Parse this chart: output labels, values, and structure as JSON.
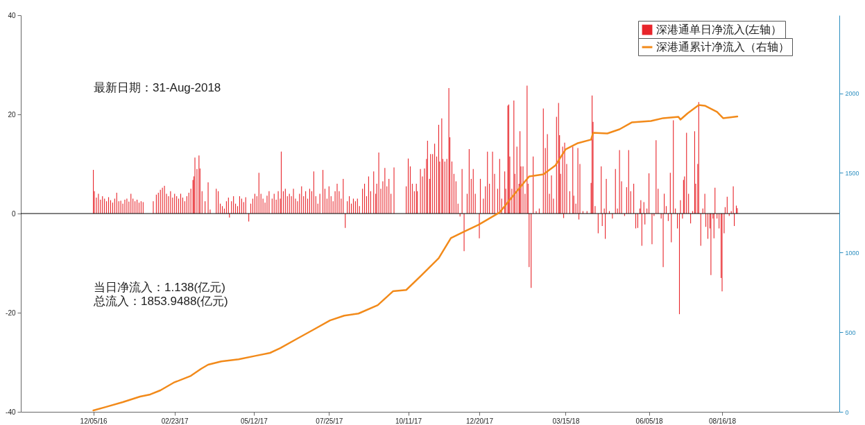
{
  "chart_data": {
    "type": "bar",
    "xlim": [
      "2016-09-28",
      "2018-12-06"
    ],
    "xticks": [
      {
        "value": "2016-12-05",
        "label": "12/05/16"
      },
      {
        "value": "2017-02-23",
        "label": "02/23/17"
      },
      {
        "value": "2017-05-12",
        "label": "05/12/17"
      },
      {
        "value": "2017-07-25",
        "label": "07/25/17"
      },
      {
        "value": "2017-10-11",
        "label": "10/11/17"
      },
      {
        "value": "2017-12-20",
        "label": "12/20/17"
      },
      {
        "value": "2018-03-15",
        "label": "03/15/18"
      },
      {
        "value": "2018-06-05",
        "label": "06/05/18"
      },
      {
        "value": "2018-08-16",
        "label": "08/16/18"
      }
    ],
    "ylim": [
      -40,
      40
    ],
    "yticks": [
      -40,
      -20,
      0,
      20,
      40
    ],
    "y2lim": [
      0,
      2490
    ],
    "y2ticks": [
      0,
      500,
      1000,
      1500,
      2000
    ],
    "legend": "top right",
    "ref_lines": [
      {
        "axis": "y",
        "value": 0,
        "color": "#000000"
      }
    ],
    "annotations": [
      "最新日期：31-Aug-2018",
      "当日净流入：1.138(亿元)",
      "总流入：1853.9488(亿元)"
    ],
    "series": [
      {
        "name": "深港通单日净流入(左轴）",
        "color": "#e8242a",
        "x": [
          "2016-12-05",
          "2016-12-06",
          "2016-12-08",
          "2016-12-10",
          "2016-12-12",
          "2016-12-14",
          "2016-12-16",
          "2016-12-18",
          "2016-12-20",
          "2016-12-22",
          "2016-12-24",
          "2016-12-26",
          "2016-12-28",
          "2016-12-30",
          "2017-01-01",
          "2017-01-03",
          "2017-01-05",
          "2017-01-07",
          "2017-01-09",
          "2017-01-11",
          "2017-01-13",
          "2017-01-15",
          "2017-01-17",
          "2017-01-19",
          "2017-01-21",
          "2017-01-23",
          "2017-02-02",
          "2017-02-05",
          "2017-02-07",
          "2017-02-09",
          "2017-02-11",
          "2017-02-13",
          "2017-02-15",
          "2017-02-17",
          "2017-02-19",
          "2017-02-21",
          "2017-02-23",
          "2017-02-25",
          "2017-02-27",
          "2017-03-01",
          "2017-03-03",
          "2017-03-05",
          "2017-03-07",
          "2017-03-09",
          "2017-03-11",
          "2017-03-13",
          "2017-03-14",
          "2017-03-15",
          "2017-03-17",
          "2017-03-19",
          "2017-03-20",
          "2017-03-22",
          "2017-03-25",
          "2017-03-28",
          "2017-03-30",
          "2017-04-05",
          "2017-04-07",
          "2017-04-09",
          "2017-04-11",
          "2017-04-13",
          "2017-04-15",
          "2017-04-17",
          "2017-04-18",
          "2017-04-20",
          "2017-04-22",
          "2017-04-24",
          "2017-04-26",
          "2017-04-28",
          "2017-04-30",
          "2017-05-02",
          "2017-05-04",
          "2017-05-07",
          "2017-05-09",
          "2017-05-11",
          "2017-05-13",
          "2017-05-15",
          "2017-05-17",
          "2017-05-19",
          "2017-05-21",
          "2017-05-23",
          "2017-05-25",
          "2017-05-27",
          "2017-05-30",
          "2017-06-01",
          "2017-06-03",
          "2017-06-05",
          "2017-06-07",
          "2017-06-08",
          "2017-06-10",
          "2017-06-12",
          "2017-06-14",
          "2017-06-16",
          "2017-06-18",
          "2017-06-20",
          "2017-06-22",
          "2017-06-24",
          "2017-06-26",
          "2017-06-28",
          "2017-06-30",
          "2017-07-02",
          "2017-07-04",
          "2017-07-06",
          "2017-07-08",
          "2017-07-10",
          "2017-07-12",
          "2017-07-14",
          "2017-07-16",
          "2017-07-19",
          "2017-07-21",
          "2017-07-23",
          "2017-07-25",
          "2017-07-27",
          "2017-07-29",
          "2017-07-31",
          "2017-08-02",
          "2017-08-04",
          "2017-08-06",
          "2017-08-08",
          "2017-08-10",
          "2017-08-12",
          "2017-08-14",
          "2017-08-16",
          "2017-08-18",
          "2017-08-20",
          "2017-08-22",
          "2017-08-24",
          "2017-08-27",
          "2017-08-29",
          "2017-08-31",
          "2017-09-02",
          "2017-09-04",
          "2017-09-07",
          "2017-09-09",
          "2017-09-10",
          "2017-09-12",
          "2017-09-14",
          "2017-09-16",
          "2017-09-18",
          "2017-09-20",
          "2017-09-22",
          "2017-09-24",
          "2017-09-27",
          "2017-10-09",
          "2017-10-11",
          "2017-10-13",
          "2017-10-15",
          "2017-10-17",
          "2017-10-19",
          "2017-10-20",
          "2017-10-23",
          "2017-10-25",
          "2017-10-27",
          "2017-10-29",
          "2017-10-30",
          "2017-11-01",
          "2017-11-02",
          "2017-11-04",
          "2017-11-06",
          "2017-11-08",
          "2017-11-10",
          "2017-11-11",
          "2017-11-13",
          "2017-11-14",
          "2017-11-16",
          "2017-11-18",
          "2017-11-20",
          "2017-11-21",
          "2017-11-23",
          "2017-11-25",
          "2017-11-27",
          "2017-11-29",
          "2017-12-01",
          "2017-12-03",
          "2017-12-05",
          "2017-12-08",
          "2017-12-10",
          "2017-12-12",
          "2017-12-14",
          "2017-12-16",
          "2017-12-20",
          "2017-12-21",
          "2017-12-24",
          "2017-12-26",
          "2017-12-28",
          "2017-12-30",
          "2018-01-02",
          "2018-01-04",
          "2018-01-07",
          "2018-01-09",
          "2018-01-11",
          "2018-01-14",
          "2018-01-15",
          "2018-01-17",
          "2018-01-18",
          "2018-01-19",
          "2018-01-21",
          "2018-01-23",
          "2018-01-24",
          "2018-01-26",
          "2018-01-28",
          "2018-01-29",
          "2018-01-30",
          "2018-02-01",
          "2018-02-03",
          "2018-02-05",
          "2018-02-06",
          "2018-02-07",
          "2018-02-09",
          "2018-02-11",
          "2018-02-14",
          "2018-02-17",
          "2018-02-21",
          "2018-02-23",
          "2018-02-25",
          "2018-02-27",
          "2018-03-01",
          "2018-03-03",
          "2018-03-06",
          "2018-03-08",
          "2018-03-09",
          "2018-03-10",
          "2018-03-12",
          "2018-03-13",
          "2018-03-14",
          "2018-03-16",
          "2018-03-19",
          "2018-03-22",
          "2018-03-23",
          "2018-03-25",
          "2018-03-27",
          "2018-03-28",
          "2018-03-29",
          "2018-04-01",
          "2018-04-05",
          "2018-04-09",
          "2018-04-10",
          "2018-04-11",
          "2018-04-13",
          "2018-04-16",
          "2018-04-19",
          "2018-04-20",
          "2018-04-22",
          "2018-04-23",
          "2018-04-24",
          "2018-04-27",
          "2018-04-30",
          "2018-05-03",
          "2018-05-05",
          "2018-05-07",
          "2018-05-09",
          "2018-05-12",
          "2018-05-14",
          "2018-05-16",
          "2018-05-18",
          "2018-05-21",
          "2018-05-23",
          "2018-05-25",
          "2018-05-27",
          "2018-05-28",
          "2018-05-29",
          "2018-05-31",
          "2018-06-01",
          "2018-06-03",
          "2018-06-05",
          "2018-06-08",
          "2018-06-10",
          "2018-06-12",
          "2018-06-14",
          "2018-06-17",
          "2018-06-19",
          "2018-06-20",
          "2018-06-22",
          "2018-06-24",
          "2018-06-26",
          "2018-06-27",
          "2018-06-29",
          "2018-07-01",
          "2018-07-03",
          "2018-07-05",
          "2018-07-06",
          "2018-07-08",
          "2018-07-09",
          "2018-07-10",
          "2018-07-12",
          "2018-07-14",
          "2018-07-16",
          "2018-07-18",
          "2018-07-20",
          "2018-07-21",
          "2018-07-23",
          "2018-07-24",
          "2018-07-26",
          "2018-07-28",
          "2018-07-30",
          "2018-07-31",
          "2018-08-02",
          "2018-08-04",
          "2018-08-05",
          "2018-08-07",
          "2018-08-08",
          "2018-08-09",
          "2018-08-11",
          "2018-08-13",
          "2018-08-15",
          "2018-08-16",
          "2018-08-18",
          "2018-08-19",
          "2018-08-21",
          "2018-08-23",
          "2018-08-25",
          "2018-08-27",
          "2018-08-28",
          "2018-08-30",
          "2018-08-31"
        ],
        "values": [
          8.8,
          4.5,
          3.2,
          4,
          2.8,
          3.5,
          3,
          2.5,
          3.3,
          2.7,
          2.2,
          3,
          4.2,
          2.5,
          2.6,
          2,
          2.8,
          3,
          2.4,
          4,
          3,
          2.5,
          2.8,
          2.2,
          2.5,
          2.3,
          2.5,
          3.8,
          4.2,
          4.8,
          5.2,
          5.6,
          4,
          3.5,
          4.5,
          3.2,
          4,
          3.5,
          3,
          4,
          3.2,
          2.5,
          3.5,
          4.2,
          5,
          6.8,
          7.5,
          11.3,
          9,
          11.7,
          9.1,
          4.5,
          2.5,
          6.3,
          0.8,
          5,
          4.5,
          2,
          1.5,
          1,
          2.5,
          3.2,
          -0.8,
          2.5,
          3.5,
          2,
          1.5,
          3.5,
          3,
          2.3,
          3.3,
          -1.6,
          2,
          3,
          4,
          3.5,
          8.2,
          4,
          3,
          2.2,
          3.6,
          4.5,
          3,
          4,
          2.8,
          4.5,
          3,
          12.5,
          4.5,
          5,
          3.5,
          4,
          3.5,
          5,
          3,
          2.5,
          4,
          5.5,
          3.5,
          4.5,
          3,
          5,
          4.5,
          8.5,
          3.5,
          2,
          4,
          8.8,
          5,
          3,
          5.5,
          3.5,
          2.5,
          4.5,
          6,
          4.5,
          3,
          7,
          -2.9,
          2.5,
          3.5,
          2,
          3,
          2.5,
          3,
          1.5,
          5,
          6,
          3.5,
          7.5,
          4.5,
          8.5,
          4,
          6,
          12.3,
          5,
          6.5,
          9.2,
          5.5,
          7,
          4,
          9.3,
          5.5,
          11.1,
          9.5,
          6,
          4.5,
          6,
          4.5,
          9,
          7.5,
          9.1,
          11,
          14.7,
          7,
          12,
          12,
          14.1,
          11.5,
          17.9,
          10.5,
          19.2,
          11,
          10.5,
          11,
          25.3,
          15.4,
          10.5,
          8,
          6.5,
          2,
          -0.6,
          9,
          -7.6,
          4,
          13,
          7,
          9,
          4,
          -5,
          7,
          3,
          5.5,
          12.5,
          6,
          12.5,
          8,
          5,
          11,
          3,
          8.5,
          5,
          21.8,
          22,
          11.5,
          5,
          22.8,
          8,
          13.5,
          6,
          16.6,
          9.5,
          9.5,
          4,
          25.8,
          6,
          -10.8,
          -15,
          11.5,
          0.5,
          1,
          21.2,
          13.2,
          16,
          4,
          7.7,
          3,
          19.5,
          22.3,
          15.8,
          8,
          13.5,
          -0.9,
          14.3,
          10,
          4.5,
          13.5,
          3.6,
          2,
          13.2,
          -1.2,
          10,
          0.5,
          0.5,
          6.2,
          23.8,
          18.5,
          1.5,
          -4,
          9.5,
          -2.5,
          1,
          -5.1,
          7,
          0.5,
          -1,
          9,
          1,
          12.8,
          6.5,
          -0.5,
          5.3,
          12.8,
          4.5,
          6,
          -3,
          -2.9,
          1,
          2.7,
          -6.5,
          2.3,
          -2.2,
          1,
          8.1,
          -6.2,
          -0.5,
          14.8,
          5,
          -1,
          -10.8,
          4,
          1.5,
          -1.5,
          8.2,
          -5.8,
          18.8,
          1,
          -3,
          -20.3,
          2.7,
          -1,
          6.8,
          7.5,
          16.3,
          4,
          -2,
          0.5,
          16.6,
          6,
          10,
          22.5,
          -6.5,
          1,
          4,
          -2.7,
          -5.1,
          -3,
          -12.4,
          -1,
          -5,
          5.2,
          -1,
          -3,
          -13,
          -15.7,
          -4,
          1.3,
          3.4,
          -0.5,
          0.5,
          5.5,
          -2.5,
          1.6,
          1.1
        ]
      },
      {
        "name": "深港通累计净流入（右轴）",
        "type": "line",
        "axis": "y2",
        "color": "#f28a1a",
        "x": [
          "2016-12-05",
          "2016-12-17",
          "2017-01-03",
          "2017-01-20",
          "2017-01-30",
          "2017-02-09",
          "2017-02-22",
          "2017-03-11",
          "2017-03-21",
          "2017-03-28",
          "2017-04-10",
          "2017-04-27",
          "2017-05-14",
          "2017-05-28",
          "2017-06-07",
          "2017-06-23",
          "2017-07-10",
          "2017-07-26",
          "2017-08-09",
          "2017-08-23",
          "2017-09-11",
          "2017-09-26",
          "2017-10-09",
          "2017-10-24",
          "2017-11-10",
          "2017-11-22",
          "2017-12-06",
          "2017-12-19",
          "2018-01-09",
          "2018-01-24",
          "2018-02-07",
          "2018-02-21",
          "2018-03-05",
          "2018-03-15",
          "2018-03-27",
          "2018-04-09",
          "2018-04-11",
          "2018-04-25",
          "2018-05-07",
          "2018-05-19",
          "2018-06-07",
          "2018-06-19",
          "2018-07-04",
          "2018-07-06",
          "2018-07-13",
          "2018-07-24",
          "2018-07-30",
          "2018-08-11",
          "2018-08-17",
          "2018-08-31"
        ],
        "values": [
          9,
          30,
          61,
          96,
          109,
          135,
          183,
          226,
          270,
          296,
          317,
          330,
          352,
          370,
          400,
          457,
          517,
          574,
          604,
          617,
          670,
          757,
          765,
          857,
          965,
          1091,
          1135,
          1174,
          1252,
          1370,
          1478,
          1491,
          1548,
          1648,
          1687,
          1709,
          1752,
          1748,
          1774,
          1817,
          1826,
          1844,
          1852,
          1835,
          1874,
          1926,
          1922,
          1883,
          1844,
          1854
        ]
      }
    ]
  }
}
